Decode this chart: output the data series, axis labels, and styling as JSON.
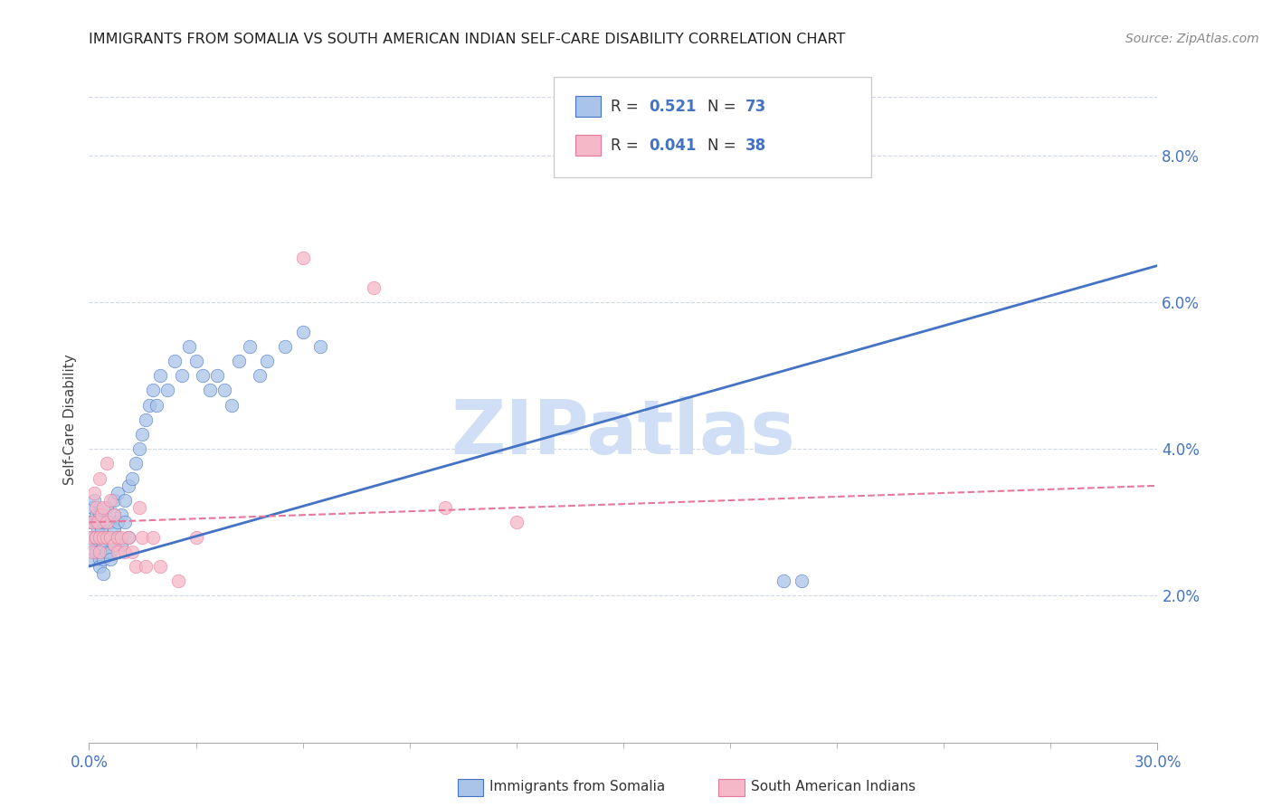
{
  "title": "IMMIGRANTS FROM SOMALIA VS SOUTH AMERICAN INDIAN SELF-CARE DISABILITY CORRELATION CHART",
  "source": "Source: ZipAtlas.com",
  "ylabel": "Self-Care Disability",
  "legend1_label": "Immigrants from Somalia",
  "legend2_label": "South American Indians",
  "legend1_R": "0.521",
  "legend1_N": "73",
  "legend2_R": "0.041",
  "legend2_N": "38",
  "color_blue": "#aac4e8",
  "color_pink": "#f4b8c8",
  "color_blue_text": "#4472c4",
  "color_pink_text": "#e8789a",
  "color_line_blue": "#4472c4",
  "color_line_pink": "#e8789a",
  "watermark_color": "#d0dff5",
  "background": "#ffffff",
  "xlim": [
    0.0,
    0.3
  ],
  "ylim": [
    0.0,
    0.088
  ],
  "blue_line_y0": 0.024,
  "blue_line_y1": 0.065,
  "pink_line_y0": 0.03,
  "pink_line_y1": 0.035,
  "somalia_x": [
    0.0005,
    0.0008,
    0.001,
    0.001,
    0.001,
    0.0015,
    0.0015,
    0.002,
    0.002,
    0.002,
    0.002,
    0.0025,
    0.003,
    0.003,
    0.003,
    0.003,
    0.003,
    0.003,
    0.0035,
    0.004,
    0.004,
    0.004,
    0.004,
    0.004,
    0.005,
    0.005,
    0.005,
    0.005,
    0.006,
    0.006,
    0.006,
    0.006,
    0.007,
    0.007,
    0.007,
    0.007,
    0.008,
    0.008,
    0.008,
    0.009,
    0.009,
    0.01,
    0.01,
    0.011,
    0.011,
    0.012,
    0.013,
    0.014,
    0.015,
    0.016,
    0.017,
    0.018,
    0.019,
    0.02,
    0.022,
    0.024,
    0.026,
    0.028,
    0.03,
    0.032,
    0.034,
    0.036,
    0.038,
    0.04,
    0.042,
    0.045,
    0.048,
    0.05,
    0.055,
    0.06,
    0.065,
    0.195,
    0.2
  ],
  "somalia_y": [
    0.03,
    0.028,
    0.032,
    0.028,
    0.025,
    0.033,
    0.027,
    0.03,
    0.028,
    0.026,
    0.031,
    0.029,
    0.03,
    0.028,
    0.026,
    0.025,
    0.024,
    0.031,
    0.029,
    0.03,
    0.028,
    0.027,
    0.025,
    0.023,
    0.032,
    0.03,
    0.028,
    0.026,
    0.03,
    0.028,
    0.026,
    0.025,
    0.033,
    0.031,
    0.029,
    0.027,
    0.034,
    0.03,
    0.028,
    0.031,
    0.027,
    0.033,
    0.03,
    0.035,
    0.028,
    0.036,
    0.038,
    0.04,
    0.042,
    0.044,
    0.046,
    0.048,
    0.046,
    0.05,
    0.048,
    0.052,
    0.05,
    0.054,
    0.052,
    0.05,
    0.048,
    0.05,
    0.048,
    0.046,
    0.052,
    0.054,
    0.05,
    0.052,
    0.054,
    0.056,
    0.054,
    0.022,
    0.022
  ],
  "southamerican_x": [
    0.0005,
    0.001,
    0.001,
    0.0015,
    0.002,
    0.002,
    0.0025,
    0.003,
    0.003,
    0.003,
    0.0035,
    0.004,
    0.004,
    0.005,
    0.005,
    0.005,
    0.006,
    0.006,
    0.007,
    0.007,
    0.008,
    0.008,
    0.009,
    0.01,
    0.011,
    0.012,
    0.013,
    0.014,
    0.015,
    0.016,
    0.018,
    0.02,
    0.025,
    0.03,
    0.06,
    0.08,
    0.1,
    0.12
  ],
  "southamerican_y": [
    0.028,
    0.03,
    0.026,
    0.034,
    0.028,
    0.032,
    0.03,
    0.036,
    0.028,
    0.026,
    0.031,
    0.028,
    0.032,
    0.028,
    0.038,
    0.03,
    0.033,
    0.028,
    0.027,
    0.031,
    0.028,
    0.026,
    0.028,
    0.026,
    0.028,
    0.026,
    0.024,
    0.032,
    0.028,
    0.024,
    0.028,
    0.024,
    0.022,
    0.028,
    0.066,
    0.062,
    0.032,
    0.03
  ]
}
